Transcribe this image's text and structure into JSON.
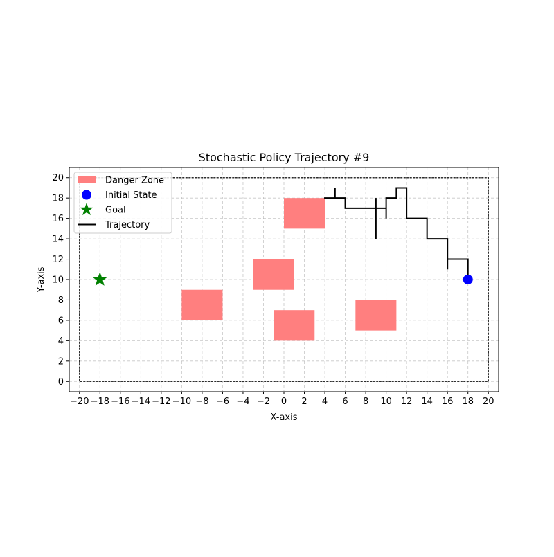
{
  "chart_data": {
    "type": "scatter",
    "title": "Stochastic Policy Trajectory #9",
    "xlabel": "X-axis",
    "ylabel": "Y-axis",
    "xlim": [
      -21,
      21
    ],
    "ylim": [
      -1,
      21
    ],
    "xticks": [
      -20,
      -18,
      -16,
      -14,
      -12,
      -10,
      -8,
      -6,
      -4,
      -2,
      0,
      2,
      4,
      6,
      8,
      10,
      12,
      14,
      16,
      18,
      20
    ],
    "yticks": [
      0,
      2,
      4,
      6,
      8,
      10,
      12,
      14,
      16,
      18,
      20
    ],
    "grid": true,
    "legend_position": "upper-left",
    "boundary": {
      "x": [
        -20,
        20
      ],
      "y": [
        0,
        20
      ],
      "color": "#000000"
    },
    "danger_zones": [
      {
        "x": [
          0,
          4
        ],
        "y": [
          15,
          18
        ]
      },
      {
        "x": [
          -3,
          1
        ],
        "y": [
          9,
          12
        ]
      },
      {
        "x": [
          -10,
          -6
        ],
        "y": [
          6,
          9
        ]
      },
      {
        "x": [
          -1,
          3
        ],
        "y": [
          4,
          7
        ]
      },
      {
        "x": [
          7,
          11
        ],
        "y": [
          5,
          8
        ]
      }
    ],
    "danger_color": "#ff7f7f",
    "initial_state": {
      "x": 18,
      "y": 10,
      "color": "#0000ff"
    },
    "goal": {
      "x": -18,
      "y": 10,
      "color": "#008000"
    },
    "trajectory": {
      "color": "#000000",
      "points": [
        [
          18,
          10
        ],
        [
          18,
          12
        ],
        [
          16,
          12
        ],
        [
          16,
          11
        ],
        [
          16,
          14
        ],
        [
          14,
          14
        ],
        [
          14,
          16
        ],
        [
          12,
          16
        ],
        [
          12,
          19
        ],
        [
          11,
          19
        ],
        [
          11,
          18
        ],
        [
          10,
          18
        ],
        [
          10,
          16
        ],
        [
          10,
          17
        ],
        [
          9,
          17
        ],
        [
          9,
          14
        ],
        [
          9,
          18
        ],
        [
          9,
          17
        ],
        [
          6,
          17
        ],
        [
          6,
          18
        ],
        [
          5,
          18
        ],
        [
          5,
          19
        ],
        [
          5,
          18
        ],
        [
          4,
          18
        ]
      ]
    },
    "legend": [
      {
        "label": "Danger Zone",
        "marker": "rect"
      },
      {
        "label": "Initial State",
        "marker": "circle"
      },
      {
        "label": "Goal",
        "marker": "star"
      },
      {
        "label": "Trajectory",
        "marker": "line"
      }
    ]
  }
}
